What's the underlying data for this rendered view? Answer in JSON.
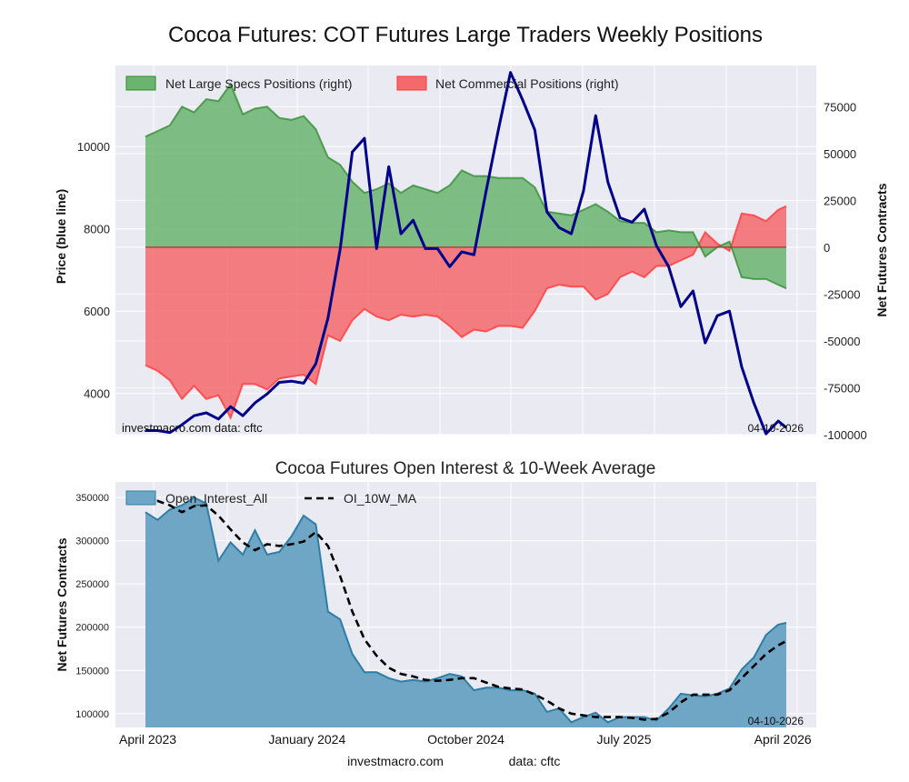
{
  "title": "Cocoa Futures: COT Futures Large Traders Weekly Positions",
  "footer": {
    "site": "investmacro.com",
    "source": "data: cftc"
  },
  "chart_data": [
    {
      "type": "area",
      "title": "Cocoa Futures: COT Futures Large Traders Weekly Positions",
      "ylabel_left": "Price (blue line)",
      "ylabel_right": "Net Futures Contracts",
      "ylim_left": [
        3000,
        11970
      ],
      "ylim_right": [
        -100000,
        97000
      ],
      "yticks_left": [
        4000,
        6000,
        8000,
        10000
      ],
      "yticks_right": [
        -100000,
        -75000,
        -50000,
        -25000,
        0,
        25000,
        50000,
        75000
      ],
      "grid": true,
      "legend_position": "top-left",
      "annotation_left": "investmacro.com    data: cftc",
      "annotation_right": "04-10-2026",
      "colors": {
        "specs": "#2e8b2e",
        "specs_fill": "#6ab46f",
        "commercial": "#ff3333",
        "commercial_fill": "#f4696c",
        "price": "#00008b",
        "background": "#eaeaf2"
      },
      "x": [
        "2023-03-28",
        "2023-04-18",
        "2023-05-09",
        "2023-05-30",
        "2023-06-20",
        "2023-07-11",
        "2023-08-01",
        "2023-08-22",
        "2023-09-12",
        "2023-10-03",
        "2023-10-24",
        "2023-11-14",
        "2023-12-05",
        "2023-12-26",
        "2024-01-16",
        "2024-02-06",
        "2024-02-27",
        "2024-03-19",
        "2024-04-09",
        "2024-04-30",
        "2024-05-21",
        "2024-06-11",
        "2024-07-02",
        "2024-07-23",
        "2024-08-13",
        "2024-09-03",
        "2024-09-24",
        "2024-10-15",
        "2024-11-05",
        "2024-11-26",
        "2024-12-17",
        "2025-01-07",
        "2025-01-28",
        "2025-02-18",
        "2025-03-11",
        "2025-04-01",
        "2025-04-22",
        "2025-05-13",
        "2025-06-03",
        "2025-06-24",
        "2025-07-15",
        "2025-08-05",
        "2025-08-26",
        "2025-09-16",
        "2025-10-07",
        "2025-10-28",
        "2025-11-18",
        "2025-12-09",
        "2025-12-30",
        "2026-01-20",
        "2026-02-10",
        "2026-03-03",
        "2026-03-24",
        "2026-04-07"
      ],
      "series": [
        {
          "name": "Net Large Specs Positions (right)",
          "axis": "right",
          "values": [
            59000,
            62000,
            65000,
            75000,
            72000,
            79000,
            78000,
            87000,
            71000,
            74000,
            75000,
            69000,
            68000,
            70000,
            63000,
            48000,
            44000,
            35000,
            29000,
            31000,
            34000,
            29000,
            33000,
            31000,
            29000,
            33000,
            41000,
            38000,
            38000,
            37000,
            37000,
            37000,
            32000,
            19000,
            18000,
            17000,
            20000,
            23000,
            19000,
            14000,
            13000,
            13000,
            8000,
            9000,
            8000,
            8000,
            -5000,
            0,
            3000,
            -16000,
            -17000,
            -17000,
            -20000,
            -22000
          ]
        },
        {
          "name": "Net Commercial Positions (right)",
          "axis": "right",
          "values": [
            -63000,
            -66000,
            -71000,
            -81000,
            -74000,
            -81000,
            -79000,
            -91000,
            -73000,
            -73000,
            -76000,
            -70000,
            -69000,
            -68000,
            -73000,
            -47000,
            -50000,
            -39000,
            -33000,
            -37000,
            -39000,
            -36000,
            -37000,
            -36000,
            -37000,
            -42000,
            -48000,
            -44000,
            -45000,
            -42000,
            -42000,
            -43000,
            -34000,
            -22000,
            -20000,
            -21000,
            -21000,
            -28000,
            -25000,
            -16000,
            -13000,
            -16000,
            -10000,
            -10000,
            -7000,
            -4000,
            8000,
            2000,
            -2000,
            18000,
            17000,
            14000,
            20000,
            22000
          ]
        },
        {
          "axis": "left",
          "values": [
            3100,
            3100,
            3050,
            3240,
            3460,
            3530,
            3380,
            3680,
            3460,
            3770,
            3990,
            4270,
            4300,
            4250,
            4720,
            5830,
            7500,
            9870,
            10200,
            7520,
            9510,
            7880,
            8210,
            7520,
            7520,
            7080,
            7440,
            7370,
            8920,
            10400,
            11800,
            11130,
            10400,
            8410,
            8030,
            7880,
            8920,
            10750,
            9140,
            8270,
            8160,
            8480,
            7590,
            7080,
            6110,
            6490,
            5230,
            5890,
            6000,
            4650,
            3770,
            3020,
            3330,
            3170
          ]
        }
      ]
    },
    {
      "type": "area",
      "title": "Cocoa Futures Open Interest & 10-Week Average",
      "ylabel": "Net Futures Contracts",
      "ylim": [
        84000,
        368000
      ],
      "yticks": [
        100000,
        150000,
        200000,
        250000,
        300000,
        350000
      ],
      "xtick_labels": [
        {
          "date": "2023-04-01",
          "label": "April 2023"
        },
        {
          "date": "2024-01-01",
          "label": "January 2024"
        },
        {
          "date": "2024-10-01",
          "label": "October 2024"
        },
        {
          "date": "2025-07-01",
          "label": "July 2025"
        },
        {
          "date": "2026-04-01",
          "label": "April 2026"
        }
      ],
      "grid": true,
      "legend_position": "top-left",
      "annotation_right": "04-10-2026",
      "colors": {
        "oi_fill": "#6fa5c5",
        "oi_line": "#2e7ea6",
        "ma": "#000000"
      },
      "series": [
        {
          "name": "Open_Interest_All",
          "values": [
            333000,
            324000,
            336000,
            341000,
            350000,
            343000,
            277000,
            298000,
            284000,
            312000,
            284000,
            287000,
            305000,
            329000,
            319000,
            218000,
            209000,
            169000,
            148000,
            148000,
            141000,
            137000,
            139000,
            137000,
            141000,
            146000,
            143000,
            127000,
            130000,
            130000,
            127000,
            127000,
            123000,
            102000,
            106000,
            90000,
            96000,
            101000,
            90000,
            96000,
            96000,
            96000,
            92000,
            106000,
            123000,
            121000,
            120000,
            123000,
            129000,
            151000,
            165000,
            191000,
            203000,
            205000
          ]
        },
        {
          "name": "OI_10W_MA",
          "values": [
            343000,
            346000,
            341000,
            333000,
            340000,
            341000,
            329000,
            313000,
            298000,
            289000,
            296000,
            294000,
            296000,
            299000,
            310000,
            294000,
            259000,
            218000,
            186000,
            167000,
            153000,
            146000,
            143000,
            139000,
            138000,
            139000,
            141000,
            141000,
            136000,
            131000,
            129000,
            128000,
            122000,
            115000,
            106000,
            100000,
            98000,
            96000,
            96000,
            96000,
            95000,
            93000,
            94000,
            101000,
            113000,
            122000,
            122000,
            122000,
            127000,
            141000,
            155000,
            169000,
            179000,
            184000
          ]
        }
      ]
    }
  ]
}
